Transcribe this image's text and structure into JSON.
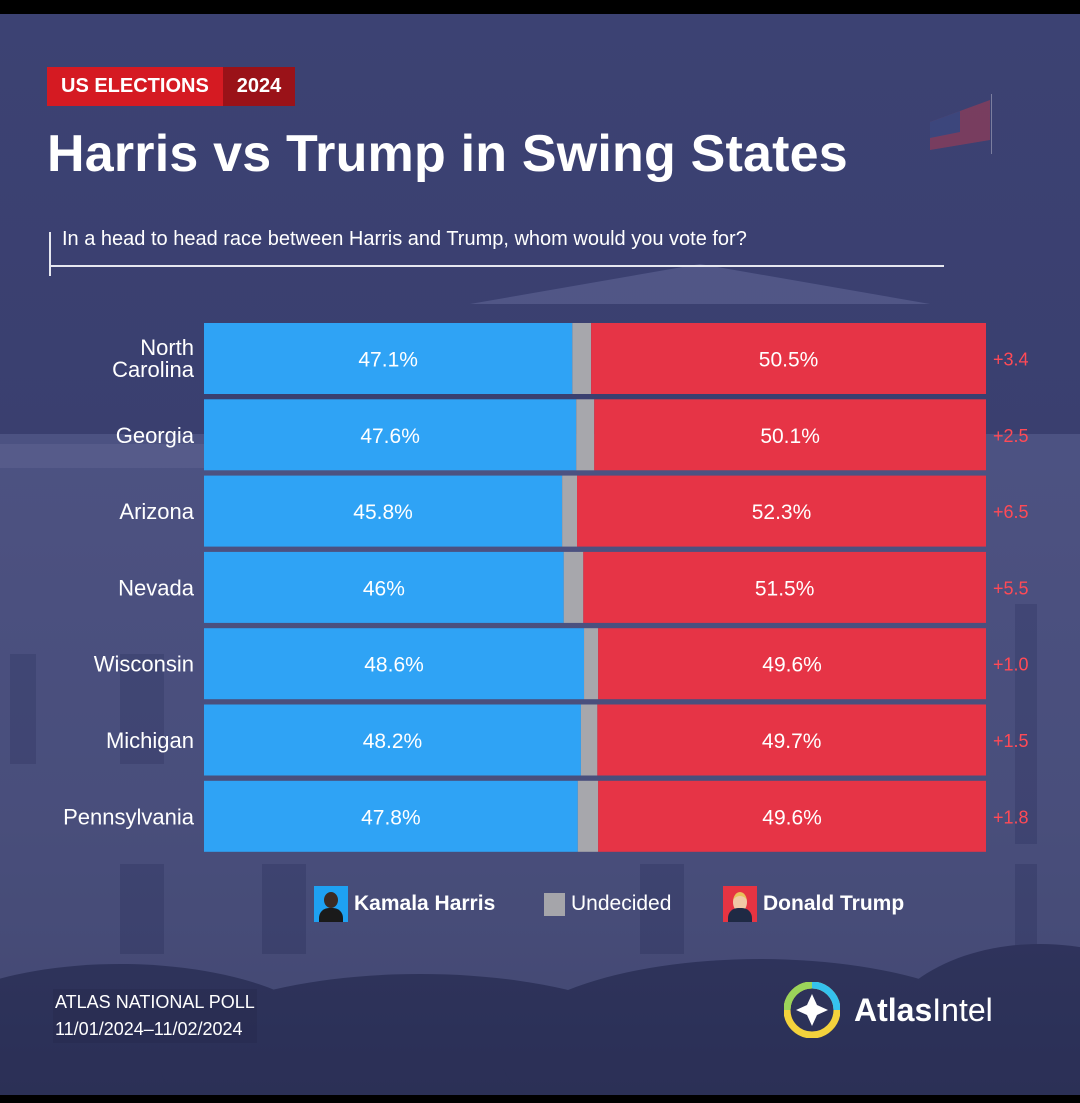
{
  "header": {
    "tag_left": "US ELECTIONS",
    "tag_right": "2024",
    "title": "Harris vs Trump in Swing States",
    "subtitle": "In a head to head race between Harris and Trump, whom would you vote for?"
  },
  "colors": {
    "harris": "#2fa3f5",
    "trump": "#e63446",
    "undecided": "#a7a7ac",
    "margin_text": "#ff4a56",
    "background": "#3c4273"
  },
  "chart_data": {
    "type": "bar",
    "stacked": true,
    "orientation": "horizontal",
    "categories": [
      "North Carolina",
      "Georgia",
      "Arizona",
      "Nevada",
      "Wisconsin",
      "Michigan",
      "Pennsylvania"
    ],
    "series": [
      {
        "name": "Kamala Harris",
        "values": [
          47.1,
          47.6,
          45.8,
          46,
          48.6,
          48.2,
          47.8
        ],
        "labels": [
          "47.1%",
          "47.6%",
          "45.8%",
          "46%",
          "48.6%",
          "48.2%",
          "47.8%"
        ]
      },
      {
        "name": "Undecided",
        "values": [
          2.4,
          2.3,
          1.9,
          2.5,
          1.8,
          2.1,
          2.6
        ]
      },
      {
        "name": "Donald Trump",
        "values": [
          50.5,
          50.1,
          52.3,
          51.5,
          49.6,
          49.7,
          49.6
        ],
        "labels": [
          "50.5%",
          "50.1%",
          "52.3%",
          "51.5%",
          "49.6%",
          "49.7%",
          "49.6%"
        ]
      }
    ],
    "margins": [
      "+3.4",
      "+2.5",
      "+6.5",
      "+5.5",
      "+1.0",
      "+1.5",
      "+1.8"
    ],
    "xlim": [
      0,
      100
    ],
    "legend": {
      "position": "bottom",
      "items": [
        "Kamala Harris",
        "Undecided",
        "Donald Trump"
      ]
    },
    "grid": false
  },
  "footer": {
    "source_line1": "ATLAS NATIONAL POLL",
    "source_line2": "11/01/2024–11/02/2024",
    "logo_bold": "Atlas",
    "logo_light": "Intel"
  }
}
